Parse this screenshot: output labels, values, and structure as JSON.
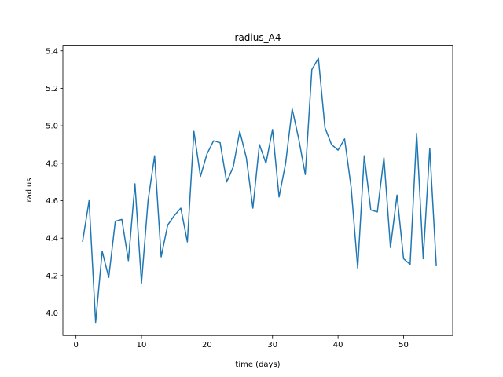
{
  "chart_data": {
    "type": "line",
    "title": "radius_A4",
    "xlabel": "time (days)",
    "ylabel": "radius",
    "xlim": [
      -2,
      57.5
    ],
    "ylim": [
      3.88,
      5.43
    ],
    "xticks": [
      0,
      10,
      20,
      30,
      40,
      50
    ],
    "yticks": [
      4.0,
      4.2,
      4.4,
      4.6,
      4.8,
      5.0,
      5.2,
      5.4
    ],
    "ytick_labels": [
      "4.0",
      "4.2",
      "4.4",
      "4.6",
      "4.8",
      "5.0",
      "5.2",
      "5.4"
    ],
    "grid": false,
    "line_color": "#1f77b4",
    "series": [
      {
        "x": [
          1,
          2,
          3,
          4,
          5,
          6,
          7,
          8,
          9,
          10,
          11,
          12,
          13,
          14,
          15,
          16,
          17,
          18,
          19,
          20,
          21,
          22,
          23,
          24,
          25,
          26,
          27,
          28,
          29,
          30,
          31,
          32,
          33,
          34,
          35,
          36,
          37,
          38,
          39,
          40,
          41,
          42,
          43,
          44,
          45,
          46,
          47,
          48,
          49,
          50,
          51,
          52,
          53,
          54,
          55
        ],
        "values": [
          4.38,
          4.6,
          3.95,
          4.33,
          4.19,
          4.49,
          4.5,
          4.28,
          4.69,
          4.16,
          4.6,
          4.84,
          4.3,
          4.47,
          4.52,
          4.56,
          4.38,
          4.97,
          4.73,
          4.85,
          4.92,
          4.91,
          4.7,
          4.78,
          4.97,
          4.83,
          4.56,
          4.9,
          4.8,
          4.98,
          4.62,
          4.8,
          5.09,
          4.93,
          4.74,
          5.3,
          5.36,
          4.99,
          4.9,
          4.87,
          4.93,
          4.67,
          4.24,
          4.84,
          4.55,
          4.54,
          4.83,
          4.35,
          4.63,
          4.29,
          4.26,
          4.96,
          4.29,
          4.88,
          4.25
        ]
      }
    ]
  }
}
